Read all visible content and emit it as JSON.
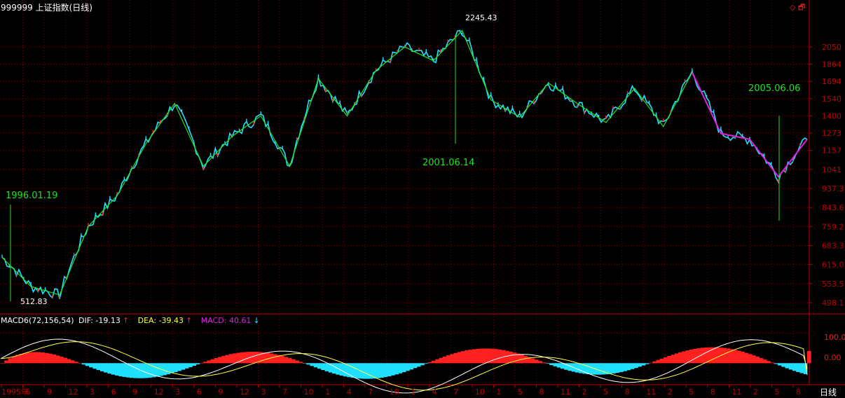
{
  "window": {
    "title": "999999 上证指数(日线)",
    "icons": [
      "diamond-icon",
      "restore-window-icon"
    ],
    "period_tab": "日线"
  },
  "colors": {
    "background": "#000000",
    "grid": "#7a0000",
    "axis": "#c00000",
    "up": "#ff2020",
    "down": "#20e0ff",
    "zigzag": "#22e022",
    "highlight_line": "#e020e0",
    "dif": "#ffffff",
    "dea": "#ffff40",
    "annotation": "#22e022"
  },
  "price_chart": {
    "y_ticks": [
      "2050",
      "1864",
      "1694",
      "1540",
      "1400",
      "1273",
      "1157",
      "1041",
      "937.3",
      "843.6",
      "759.2",
      "683.3",
      "615.0",
      "553.5",
      "498.1"
    ],
    "high_label": "2245.43",
    "low_label": "512.83",
    "annotations": [
      {
        "date": "1996.01.19"
      },
      {
        "date": "2001.06.14"
      },
      {
        "date": "2005.06.06"
      }
    ]
  },
  "macd": {
    "label": "MACD6(72,156,54)",
    "dif_label": "DIF: -19.13",
    "dif_arrow": "↑",
    "dea_label": "DEA: -39.43",
    "dea_arrow": "↑",
    "macd_label": "MACD: 40.61",
    "macd_arrow": "↓",
    "y_ticks": [
      "100.0",
      "0.00"
    ]
  },
  "x_axis": {
    "labels": [
      "1995年",
      "6",
      "9",
      "12",
      "3",
      "6",
      "9",
      "12",
      "3",
      "6",
      "9",
      "12",
      "3",
      "7",
      "10",
      "1",
      "4",
      "7",
      "10",
      "1",
      "4",
      "7",
      "10",
      "1",
      "5",
      "8",
      "11",
      "2",
      "5",
      "8",
      "11",
      "2",
      "5",
      "8",
      "11",
      "2",
      "5",
      "8"
    ]
  },
  "chart_data": {
    "type": "line",
    "title": "999999 上证指数(日线)",
    "ylim": [
      498.1,
      2245.43
    ],
    "x": [
      "1995.01",
      "1995.06",
      "1996.01",
      "1996.06",
      "1996.12",
      "1997.03",
      "1997.05",
      "1997.09",
      "1998.03",
      "1998.06",
      "1999.05",
      "1999.06",
      "1999.12",
      "2000.03",
      "2000.08",
      "2001.01",
      "2001.06",
      "2001.10",
      "2002.01",
      "2002.06",
      "2002.09",
      "2003.01",
      "2003.04",
      "2003.11",
      "2004.04",
      "2004.09",
      "2005.01",
      "2005.06",
      "2005.09"
    ],
    "series": [
      {
        "values": [
          640,
          545,
          520,
          760,
          900,
          1200,
          1500,
          1060,
          1250,
          1400,
          1060,
          1720,
          1400,
          1800,
          2050,
          1900,
          2245,
          1530,
          1390,
          1680,
          1500,
          1350,
          1630,
          1320,
          1780,
          1270,
          1230,
          1000,
          1230
        ]
      }
    ],
    "macd": {
      "dif": -19.13,
      "dea": -39.43,
      "macd": 40.61,
      "ylim": [
        -60,
        150
      ]
    }
  }
}
